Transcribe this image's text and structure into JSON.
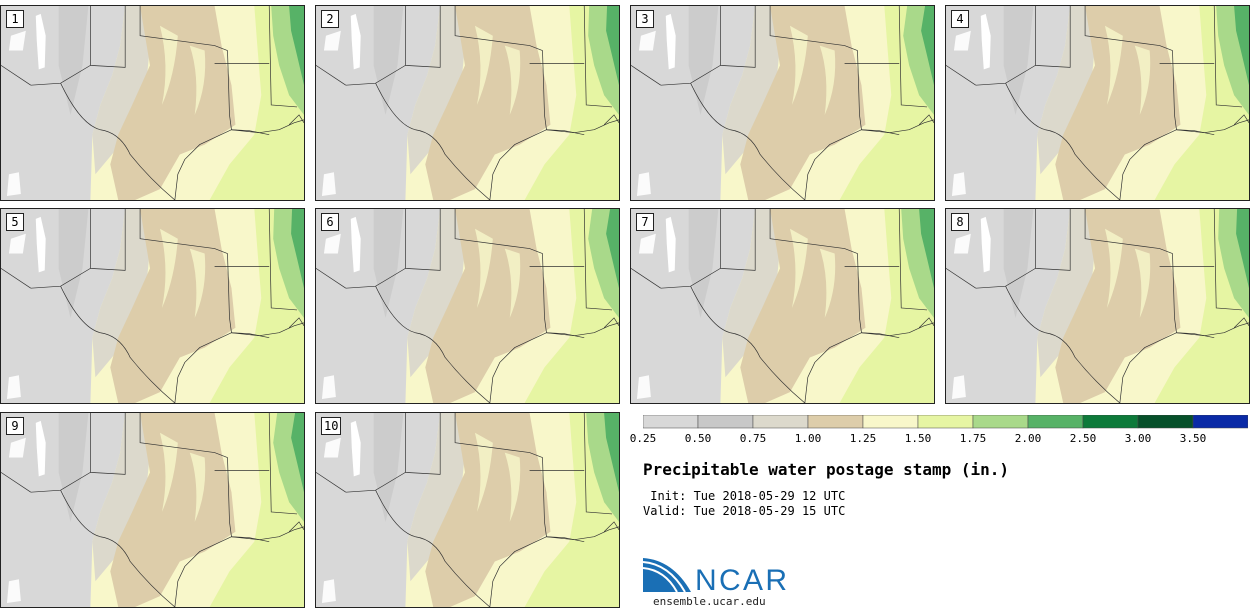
{
  "panels": [
    {
      "label": "1"
    },
    {
      "label": "2"
    },
    {
      "label": "3"
    },
    {
      "label": "4"
    },
    {
      "label": "5"
    },
    {
      "label": "6"
    },
    {
      "label": "7"
    },
    {
      "label": "8"
    },
    {
      "label": "9"
    },
    {
      "label": "10"
    }
  ],
  "colorbar": {
    "ticks": [
      "0.25",
      "0.50",
      "0.75",
      "1.00",
      "1.25",
      "1.50",
      "1.75",
      "2.00",
      "2.50",
      "3.00",
      "3.50"
    ],
    "colors": [
      "#d8d8d8",
      "#c8c8c8",
      "#dcd9cc",
      "#ddcdaa",
      "#f8f7ca",
      "#e6f5a3",
      "#a9d98a",
      "#57b267",
      "#0d7a3a",
      "#06502a",
      "#0a2aa6"
    ]
  },
  "legend": {
    "title": "Precipitable water postage stamp (in.)",
    "init": " Init: Tue 2018-05-29 12 UTC",
    "valid": "Valid: Tue 2018-05-29 15 UTC"
  },
  "logo": {
    "text": "NCAR",
    "site": "ensemble.ucar.edu"
  },
  "colors": {
    "gray": "#d8d8d8",
    "gray_dark": "#c8c8c8",
    "tan": "#ddcdaa",
    "cream": "#f8f7ca",
    "light_green": "#e6f5a3",
    "green": "#a9d98a",
    "dark_green": "#57b267",
    "ncar_blue": "#1a6fb5"
  }
}
